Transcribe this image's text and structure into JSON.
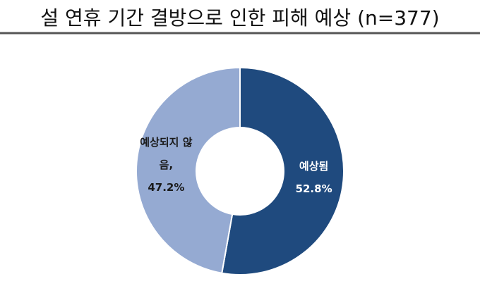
{
  "chart_data": {
    "type": "donut",
    "title": "설 연휴 기간 결방으로 인한 피해 예상 (n=377)",
    "categories": [
      "예상됨",
      "예상되지 않음,"
    ],
    "values": [
      52.8,
      47.2
    ],
    "value_labels": [
      "52.8%",
      "47.2%"
    ],
    "colors": [
      "#1f4a7e",
      "#95aad2"
    ],
    "label_colors": [
      "#ffffff",
      "#1a1a1a"
    ]
  }
}
